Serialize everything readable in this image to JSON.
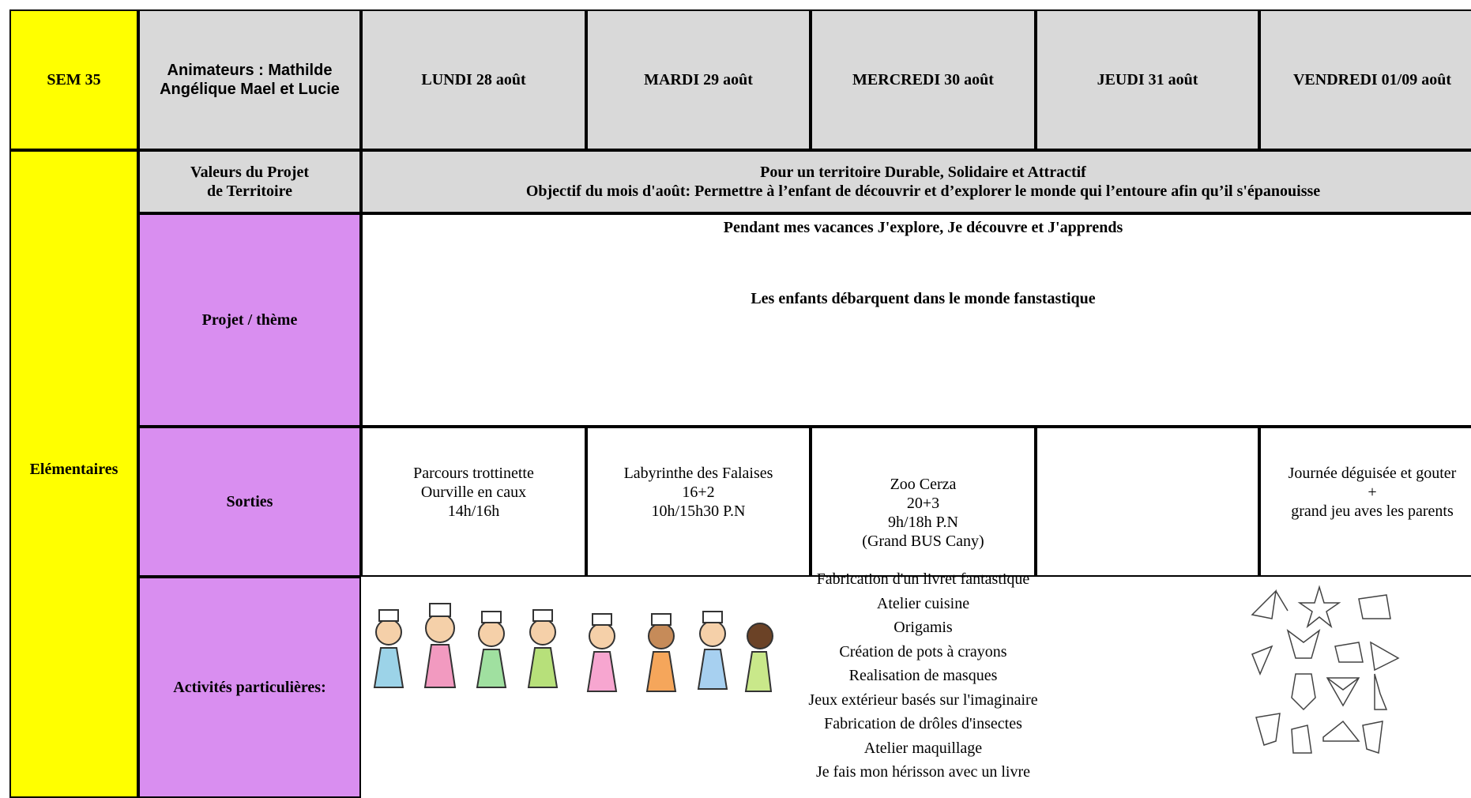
{
  "header": {
    "week": "SEM 35",
    "animators": [
      "Animateurs : Mathilde",
      "Angélique Mael et Lucie"
    ],
    "days": [
      "LUNDI 28 août",
      "MARDI 29 août",
      "MERCREDI 30 août",
      "JEUDI 31 août",
      "VENDREDI 01/09 août"
    ]
  },
  "side_label": "Elémentaires",
  "values": {
    "label": [
      "Valeurs du Projet",
      "de Territoire"
    ],
    "lines": [
      "Pour un territoire Durable, Solidaire et Attractif",
      "Objectif du mois d'août: Permettre à l’enfant de découvrir et d’explorer le monde qui l’entoure afin qu’il s'épanouisse"
    ]
  },
  "project": {
    "label": "Projet / thème",
    "lines": [
      "Pendant mes vacances J'explore, Je découvre et J'apprends",
      "Les enfants débarquent dans le monde fanstastique"
    ]
  },
  "outings": {
    "label": "Sorties",
    "cells": [
      [
        "Parcours trottinette",
        "Ourville en caux",
        "14h/16h"
      ],
      [
        "Labyrinthe des Falaises",
        "16+2",
        "10h/15h30 P.N"
      ],
      [
        "Zoo Cerza",
        "20+3",
        "9h/18h P.N",
        "(Grand BUS Cany)"
      ],
      [],
      [
        "Journée déguisée et gouter",
        "+",
        "grand jeu aves les parents"
      ]
    ]
  },
  "activities": {
    "label": "Activités particulières:",
    "items": [
      "Fabrication d'un livret fantastique",
      "Atelier cuisine",
      "Origamis",
      "Création de pots à crayons",
      "Realisation de masques",
      "Jeux extérieur basés sur l'imaginaire",
      "Fabrication de drôles d'insectes",
      "Atelier maquillage",
      "Je fais mon hérisson avec un livre"
    ]
  }
}
